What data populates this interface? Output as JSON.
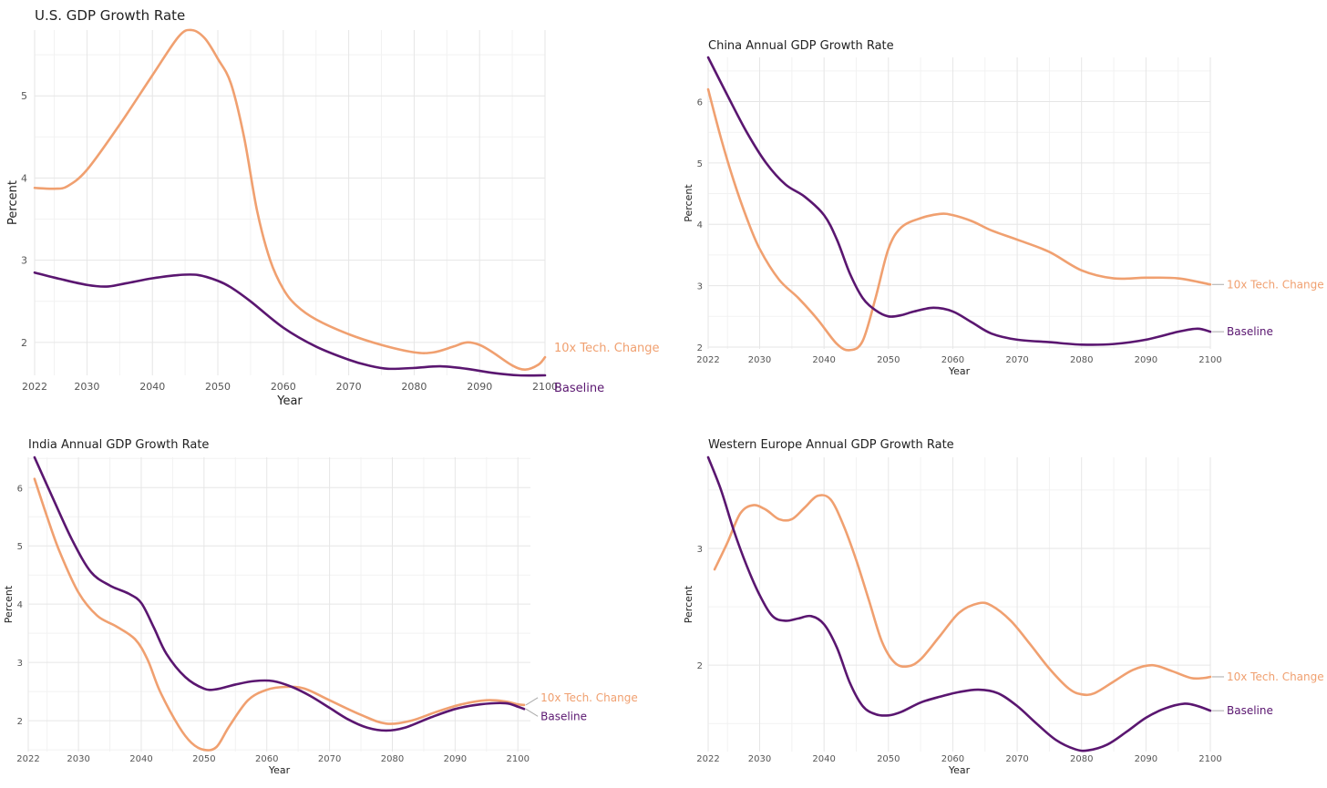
{
  "colors": {
    "tech": "#f0a070",
    "baseline": "#5a1670",
    "label_line": "#aaaaaa"
  },
  "chart_data": [
    {
      "type": "line",
      "title": "U.S. GDP Growth Rate",
      "xlabel": "Year",
      "ylabel": "Percent",
      "xlim": [
        2022,
        2100
      ],
      "ylim": [
        1.6,
        5.8
      ],
      "xticks": [
        2022,
        2030,
        2040,
        2050,
        2060,
        2070,
        2080,
        2090,
        2100
      ],
      "yticks": [
        2,
        3,
        4,
        5
      ],
      "grid": true,
      "series": [
        {
          "name": "10x Tech. Change",
          "color_key": "tech",
          "x": [
            2022,
            2025,
            2027,
            2030,
            2035,
            2040,
            2044,
            2046,
            2048,
            2050,
            2052,
            2054,
            2056,
            2058,
            2060,
            2062,
            2065,
            2070,
            2075,
            2080,
            2083,
            2086,
            2088,
            2090,
            2092,
            2095,
            2097,
            2099,
            2100
          ],
          "y": [
            3.88,
            3.87,
            3.9,
            4.1,
            4.65,
            5.25,
            5.72,
            5.8,
            5.7,
            5.45,
            5.15,
            4.5,
            3.6,
            3.0,
            2.65,
            2.45,
            2.28,
            2.1,
            1.97,
            1.88,
            1.88,
            1.95,
            2.0,
            1.97,
            1.88,
            1.72,
            1.67,
            1.73,
            1.82
          ]
        },
        {
          "name": "Baseline",
          "color_key": "baseline",
          "x": [
            2022,
            2026,
            2030,
            2033,
            2036,
            2040,
            2044,
            2047,
            2050,
            2052,
            2055,
            2060,
            2065,
            2070,
            2073,
            2076,
            2080,
            2084,
            2088,
            2092,
            2096,
            2100
          ],
          "y": [
            2.85,
            2.77,
            2.7,
            2.68,
            2.72,
            2.78,
            2.82,
            2.82,
            2.75,
            2.67,
            2.5,
            2.18,
            1.95,
            1.79,
            1.72,
            1.68,
            1.69,
            1.71,
            1.68,
            1.63,
            1.6,
            1.6
          ]
        }
      ]
    },
    {
      "type": "line",
      "title": "China Annual GDP Growth Rate",
      "xlabel": "Year",
      "ylabel": "Percent",
      "xlim": [
        2022,
        2100
      ],
      "ylim": [
        1.97,
        6.72
      ],
      "xticks": [
        2022,
        2030,
        2040,
        2050,
        2060,
        2070,
        2080,
        2090,
        2100
      ],
      "yticks": [
        2,
        3,
        4,
        5,
        6
      ],
      "grid": true,
      "series": [
        {
          "name": "10x Tech. Change",
          "color_key": "tech",
          "x": [
            2022,
            2024,
            2026,
            2028,
            2030,
            2033,
            2036,
            2039,
            2042,
            2044,
            2046,
            2048,
            2050,
            2052,
            2055,
            2058,
            2060,
            2063,
            2066,
            2070,
            2075,
            2080,
            2085,
            2090,
            2095,
            2100
          ],
          "y": [
            6.2,
            5.4,
            4.7,
            4.1,
            3.6,
            3.1,
            2.8,
            2.45,
            2.05,
            1.95,
            2.1,
            2.8,
            3.6,
            3.95,
            4.1,
            4.17,
            4.15,
            4.05,
            3.9,
            3.75,
            3.55,
            3.25,
            3.12,
            3.13,
            3.12,
            3.02
          ]
        },
        {
          "name": "Baseline",
          "color_key": "baseline",
          "x": [
            2022,
            2025,
            2028,
            2031,
            2034,
            2037,
            2040,
            2042,
            2044,
            2046,
            2048,
            2050,
            2052,
            2054,
            2057,
            2060,
            2063,
            2066,
            2070,
            2075,
            2080,
            2085,
            2090,
            2095,
            2098,
            2100
          ],
          "y": [
            6.72,
            6.1,
            5.5,
            5.0,
            4.65,
            4.45,
            4.15,
            3.75,
            3.2,
            2.8,
            2.6,
            2.5,
            2.52,
            2.58,
            2.64,
            2.58,
            2.4,
            2.22,
            2.12,
            2.08,
            2.04,
            2.05,
            2.12,
            2.25,
            2.3,
            2.25
          ]
        }
      ]
    },
    {
      "type": "line",
      "title": "India Annual GDP Growth Rate",
      "xlabel": "Year",
      "ylabel": "Percent",
      "xlim": [
        2022,
        2102
      ],
      "ylim": [
        1.47,
        6.52
      ],
      "xticks": [
        2022,
        2030,
        2040,
        2050,
        2060,
        2070,
        2080,
        2090,
        2100
      ],
      "yticks": [
        2,
        3,
        4,
        5,
        6
      ],
      "grid": true,
      "series": [
        {
          "name": "10x Tech. Change",
          "color_key": "tech",
          "x": [
            2023,
            2025,
            2027,
            2030,
            2033,
            2036,
            2039,
            2041,
            2043,
            2046,
            2048,
            2050,
            2052,
            2054,
            2057,
            2060,
            2063,
            2066,
            2070,
            2075,
            2079,
            2083,
            2087,
            2091,
            2095,
            2098,
            2100,
            2101
          ],
          "y": [
            6.15,
            5.5,
            4.9,
            4.2,
            3.8,
            3.62,
            3.4,
            3.05,
            2.5,
            1.9,
            1.62,
            1.5,
            1.55,
            1.9,
            2.35,
            2.53,
            2.58,
            2.55,
            2.35,
            2.1,
            1.95,
            2.0,
            2.15,
            2.28,
            2.35,
            2.33,
            2.28,
            2.27
          ]
        },
        {
          "name": "Baseline",
          "color_key": "baseline",
          "x": [
            2023,
            2026,
            2029,
            2032,
            2035,
            2038,
            2040,
            2042,
            2044,
            2047,
            2050,
            2052,
            2055,
            2058,
            2061,
            2064,
            2067,
            2070,
            2073,
            2076,
            2079,
            2082,
            2086,
            2090,
            2094,
            2098,
            2100,
            2101
          ],
          "y": [
            6.52,
            5.8,
            5.1,
            4.55,
            4.32,
            4.18,
            4.02,
            3.6,
            3.15,
            2.75,
            2.55,
            2.54,
            2.62,
            2.68,
            2.68,
            2.58,
            2.42,
            2.22,
            2.02,
            1.88,
            1.83,
            1.88,
            2.05,
            2.2,
            2.28,
            2.3,
            2.24,
            2.2
          ]
        }
      ]
    },
    {
      "type": "line",
      "title": "Western Europe Annual GDP Growth Rate",
      "xlabel": "Year",
      "ylabel": "Percent",
      "xlim": [
        2022,
        2100
      ],
      "ylim": [
        1.26,
        3.78
      ],
      "xticks": [
        2022,
        2030,
        2040,
        2050,
        2060,
        2070,
        2080,
        2090,
        2100
      ],
      "yticks": [
        2,
        3
      ],
      "grid": true,
      "series": [
        {
          "name": "10x Tech. Change",
          "color_key": "tech",
          "x": [
            2023,
            2025,
            2027,
            2029,
            2031,
            2033,
            2035,
            2037,
            2039,
            2041,
            2043,
            2045,
            2047,
            2049,
            2051,
            2053,
            2055,
            2058,
            2061,
            2064,
            2066,
            2069,
            2072,
            2075,
            2078,
            2080,
            2082,
            2085,
            2088,
            2091,
            2094,
            2097,
            2099,
            2100
          ],
          "y": [
            2.82,
            3.05,
            3.3,
            3.37,
            3.33,
            3.25,
            3.25,
            3.35,
            3.45,
            3.42,
            3.2,
            2.9,
            2.55,
            2.2,
            2.02,
            1.99,
            2.05,
            2.25,
            2.45,
            2.53,
            2.51,
            2.38,
            2.18,
            1.97,
            1.8,
            1.75,
            1.76,
            1.86,
            1.96,
            2.0,
            1.95,
            1.89,
            1.89,
            1.9
          ]
        },
        {
          "name": "Baseline",
          "color_key": "baseline",
          "x": [
            2022,
            2024,
            2026,
            2028,
            2030,
            2032,
            2034,
            2036,
            2038,
            2040,
            2042,
            2044,
            2046,
            2048,
            2050,
            2052,
            2055,
            2058,
            2061,
            2064,
            2067,
            2070,
            2073,
            2076,
            2079,
            2081,
            2084,
            2087,
            2090,
            2093,
            2096,
            2098,
            2100
          ],
          "y": [
            3.78,
            3.5,
            3.15,
            2.85,
            2.6,
            2.42,
            2.38,
            2.4,
            2.42,
            2.35,
            2.15,
            1.85,
            1.65,
            1.58,
            1.57,
            1.6,
            1.68,
            1.73,
            1.77,
            1.79,
            1.76,
            1.65,
            1.5,
            1.36,
            1.28,
            1.27,
            1.32,
            1.43,
            1.55,
            1.63,
            1.67,
            1.65,
            1.61
          ]
        }
      ]
    }
  ]
}
